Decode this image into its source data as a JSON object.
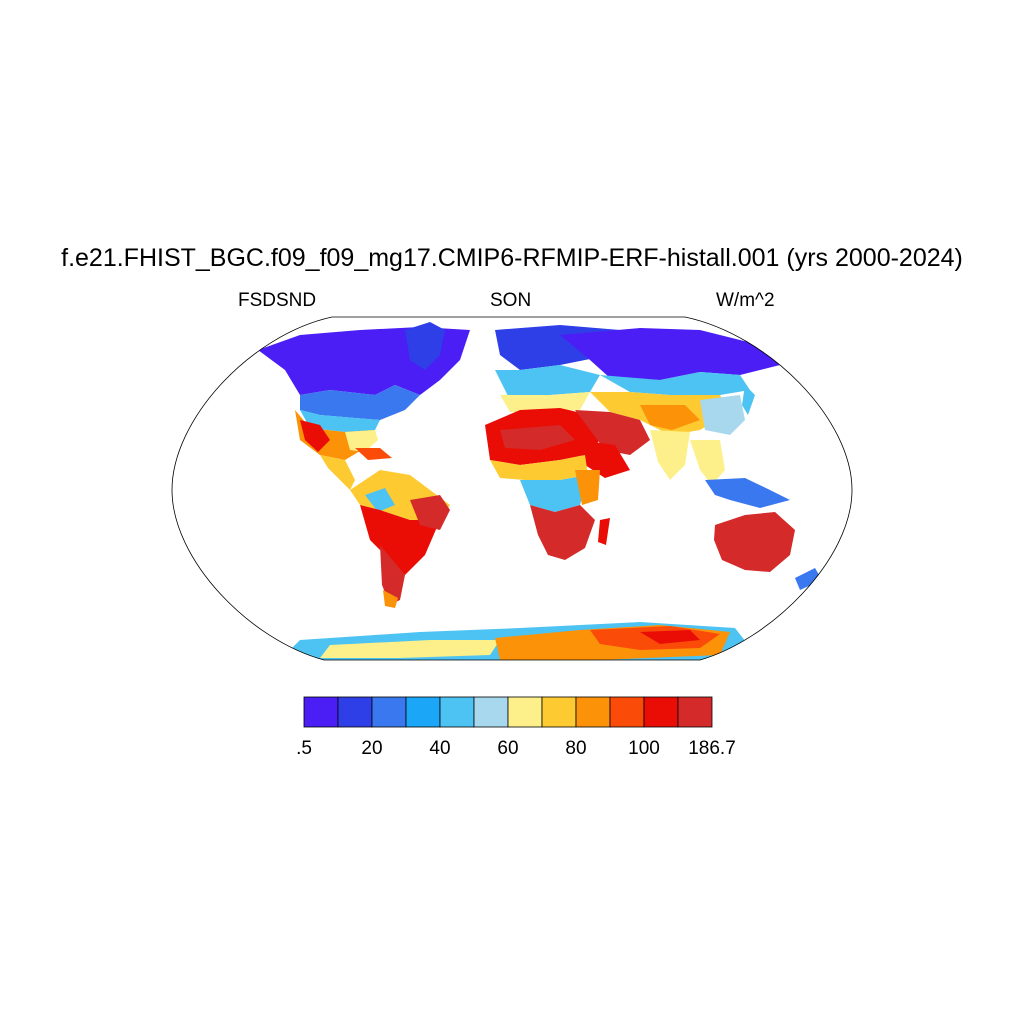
{
  "figure": {
    "title": "f.e21.FHIST_BGC.f09_f09_mg17.CMIP6-RFMIP-ERF-histall.001 (yrs 2000-2024)",
    "left_label": "FSDSND",
    "center_label": "SON",
    "right_label": "W/m^2"
  },
  "colorbar": {
    "colors": [
      "#4a1ef5",
      "#2f3fe8",
      "#3a78f0",
      "#1ba6f7",
      "#4cc3f2",
      "#a8d8ee",
      "#fdf08a",
      "#fdcb31",
      "#fb9208",
      "#fb4b08",
      "#e90d06",
      "#d42a2a"
    ],
    "tick_labels": [
      ".5",
      "20",
      "40",
      "60",
      "80",
      "100",
      "186.7"
    ],
    "tick_box_edges": [
      0,
      2,
      4,
      6,
      8,
      10,
      12
    ]
  }
}
